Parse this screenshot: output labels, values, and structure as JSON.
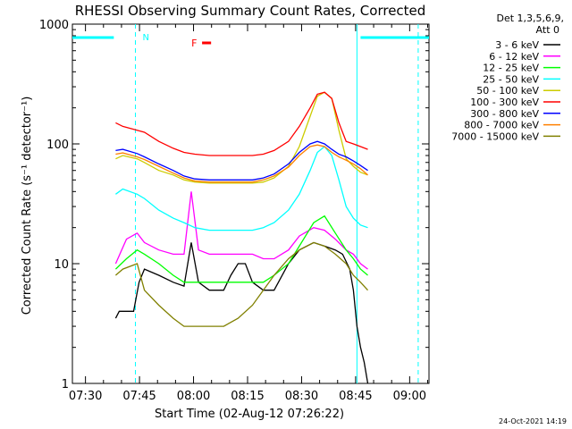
{
  "chart_data": {
    "type": "line",
    "title": "RHESSI Observing Summary Count Rates, Corrected",
    "xlabel": "Start Time (02-Aug-12 07:26:22)",
    "ylabel": "Corrected Count Rate (s⁻¹ detector⁻¹)",
    "x_unit": "minutes after 07:26:22",
    "xlim": [
      0,
      99
    ],
    "ylim": [
      1,
      1000
    ],
    "y_scale": "log",
    "grid": false,
    "x_ticks": [
      {
        "v": 3.63,
        "label": "07:30"
      },
      {
        "v": 18.63,
        "label": "07:45"
      },
      {
        "v": 33.63,
        "label": "08:00"
      },
      {
        "v": 48.63,
        "label": "08:15"
      },
      {
        "v": 63.63,
        "label": "08:30"
      },
      {
        "v": 78.63,
        "label": "08:45"
      },
      {
        "v": 93.63,
        "label": "09:00"
      }
    ],
    "y_ticks": [
      {
        "v": 1,
        "label": "1"
      },
      {
        "v": 10,
        "label": "10"
      },
      {
        "v": 100,
        "label": "100"
      },
      {
        "v": 1000,
        "label": "1000"
      }
    ],
    "legend_header": [
      "Det 1,3,5,6,9,",
      "Att 0"
    ],
    "legend_position": "right",
    "series": [
      {
        "name": "3 - 6 keV",
        "color": "#000000",
        "x": [
          12,
          13,
          15,
          17,
          18.5,
          20,
          24,
          28,
          31,
          33,
          35,
          38,
          42,
          44,
          46,
          48,
          50,
          53,
          56,
          60,
          63,
          67,
          70,
          73,
          75,
          77,
          78,
          79,
          80,
          81,
          82
        ],
        "y": [
          3.5,
          4,
          4,
          4,
          7,
          9,
          8,
          7,
          6.5,
          15,
          7,
          6,
          6,
          8,
          10,
          10,
          7,
          6,
          6,
          10,
          13,
          15,
          14,
          13,
          12,
          9,
          6,
          3,
          2,
          1.5,
          1
        ]
      },
      {
        "name": "6 - 12 keV",
        "color": "#ff00ff",
        "x": [
          12,
          15,
          18,
          20,
          24,
          28,
          31,
          33,
          35,
          38,
          42,
          46,
          50,
          53,
          56,
          60,
          63,
          67,
          70,
          73,
          76,
          78,
          80,
          82
        ],
        "y": [
          10,
          16,
          18,
          15,
          13,
          12,
          12,
          40,
          13,
          12,
          12,
          12,
          12,
          11,
          11,
          13,
          17,
          20,
          19,
          16,
          13,
          12,
          10,
          9
        ]
      },
      {
        "name": "12 - 25 keV",
        "color": "#00ff00",
        "x": [
          12,
          15,
          18,
          20,
          24,
          28,
          31,
          34,
          38,
          42,
          46,
          50,
          53,
          56,
          60,
          63,
          67,
          70,
          73,
          76,
          78,
          80,
          82
        ],
        "y": [
          9,
          11,
          13,
          12,
          10,
          8,
          7,
          7,
          7,
          7,
          7,
          7,
          7,
          8,
          10,
          14,
          22,
          25,
          18,
          13,
          11,
          9,
          8
        ]
      },
      {
        "name": "25 - 50 keV",
        "color": "#00ffff",
        "x": [
          12,
          14,
          18,
          20,
          24,
          28,
          31,
          34,
          38,
          42,
          46,
          50,
          53,
          56,
          60,
          63,
          66,
          68,
          70,
          72,
          74,
          76,
          78,
          80,
          82
        ],
        "y": [
          38,
          42,
          38,
          35,
          28,
          24,
          22,
          20,
          19,
          19,
          19,
          19,
          20,
          22,
          28,
          38,
          60,
          85,
          95,
          80,
          50,
          30,
          24,
          21,
          20
        ]
      },
      {
        "name": "50 - 100 keV",
        "color": "#cccc00",
        "x": [
          12,
          14,
          18,
          20,
          24,
          28,
          31,
          34,
          38,
          42,
          46,
          50,
          53,
          56,
          60,
          63,
          66,
          68,
          70,
          72,
          74,
          76,
          78,
          80,
          82
        ],
        "y": [
          75,
          80,
          75,
          70,
          60,
          55,
          50,
          48,
          47,
          47,
          47,
          47,
          48,
          52,
          65,
          95,
          170,
          250,
          270,
          240,
          130,
          75,
          65,
          58,
          55
        ]
      },
      {
        "name": "100 - 300 keV",
        "color": "#ff0000",
        "x": [
          12,
          14,
          18,
          20,
          24,
          28,
          31,
          34,
          38,
          42,
          46,
          50,
          53,
          56,
          60,
          63,
          66,
          68,
          70,
          72,
          74,
          76,
          78,
          80,
          82
        ],
        "y": [
          150,
          140,
          130,
          125,
          105,
          92,
          85,
          82,
          80,
          80,
          80,
          80,
          82,
          88,
          105,
          140,
          200,
          260,
          270,
          240,
          150,
          105,
          100,
          95,
          90
        ]
      },
      {
        "name": "300 - 800 keV",
        "color": "#0000ff",
        "x": [
          12,
          14,
          18,
          20,
          24,
          28,
          31,
          34,
          38,
          42,
          46,
          50,
          53,
          56,
          60,
          63,
          66,
          68,
          70,
          72,
          74,
          76,
          78,
          80,
          82
        ],
        "y": [
          88,
          90,
          83,
          78,
          68,
          60,
          54,
          51,
          50,
          50,
          50,
          50,
          52,
          56,
          68,
          85,
          100,
          105,
          100,
          90,
          82,
          78,
          72,
          66,
          60
        ]
      },
      {
        "name": "800 - 7000 keV",
        "color": "#ff8000",
        "x": [
          12,
          14,
          18,
          20,
          24,
          28,
          31,
          34,
          38,
          42,
          46,
          50,
          53,
          56,
          60,
          63,
          66,
          68,
          70,
          72,
          74,
          76,
          78,
          80,
          82
        ],
        "y": [
          82,
          84,
          78,
          74,
          65,
          57,
          52,
          49,
          48,
          48,
          48,
          48,
          50,
          54,
          64,
          80,
          95,
          98,
          95,
          85,
          78,
          73,
          68,
          62,
          55
        ]
      },
      {
        "name": "7000 - 15000 keV",
        "color": "#808000",
        "x": [
          12,
          14,
          18,
          20,
          24,
          28,
          31,
          34,
          38,
          42,
          46,
          50,
          53,
          56,
          60,
          63,
          67,
          70,
          73,
          76,
          78,
          80,
          82
        ],
        "y": [
          8,
          9,
          10,
          6,
          4.5,
          3.5,
          3,
          3,
          3,
          3,
          3.5,
          4.5,
          6,
          8,
          11,
          13,
          15,
          14,
          12,
          10,
          8,
          7,
          6
        ]
      }
    ],
    "annotations": {
      "night_label": "N",
      "flare_label": "F",
      "night_color": "#00ffff",
      "flare_color": "#ff0000",
      "night_bars": [
        [
          0,
          11.5
        ],
        [
          80,
          99
        ]
      ],
      "night_dashes": [
        17.5,
        96
      ],
      "night_solid": [
        79
      ],
      "flare_bar": [
        36,
        38.5
      ]
    },
    "timestamp": "24-Oct-2021 14:19"
  }
}
